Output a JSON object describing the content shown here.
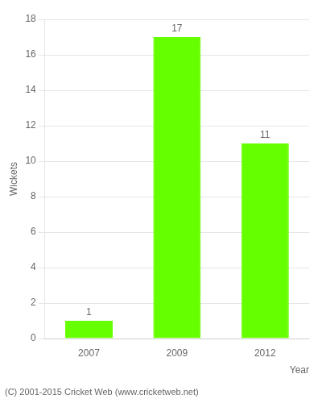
{
  "chart_data": {
    "type": "bar",
    "categories": [
      "2007",
      "2009",
      "2012"
    ],
    "values": [
      1,
      17,
      11
    ],
    "color": "#66ff00",
    "xlabel": "Year",
    "ylabel": "Wickets",
    "ylim": [
      0,
      18
    ],
    "yticks": [
      0,
      2,
      4,
      6,
      8,
      10,
      12,
      14,
      16,
      18
    ],
    "grid": true,
    "data_labels": true,
    "annotations": [
      "(C) 2001-2015 Cricket Web (www.cricketweb.net)"
    ]
  }
}
